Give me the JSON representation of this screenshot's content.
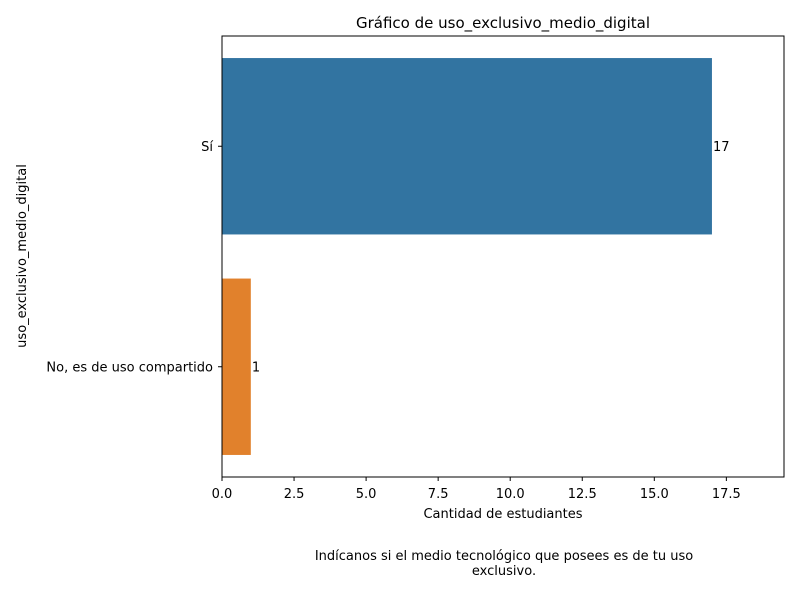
{
  "chart_data": {
    "type": "bar",
    "orientation": "horizontal",
    "title": "Gráfico de uso_exclusivo_medio_digital",
    "xlabel": "Cantidad de estudiantes",
    "ylabel": "uso_exclusivo_medio_digital",
    "categories": [
      "Sí",
      "No, es de uso compartido"
    ],
    "values": [
      17,
      1
    ],
    "data_labels": [
      "17",
      "1"
    ],
    "colors": [
      "#3274a1",
      "#e1812c"
    ],
    "xlim": [
      0,
      19.5
    ],
    "xticks": [
      0.0,
      2.5,
      5.0,
      7.5,
      10.0,
      12.5,
      15.0,
      17.5
    ],
    "xtick_labels": [
      "0.0",
      "2.5",
      "5.0",
      "7.5",
      "10.0",
      "12.5",
      "15.0",
      "17.5"
    ],
    "grid": false,
    "legend": "none"
  },
  "caption": "Indícanos si el medio tecnológico que posees es de tu uso exclusivo."
}
